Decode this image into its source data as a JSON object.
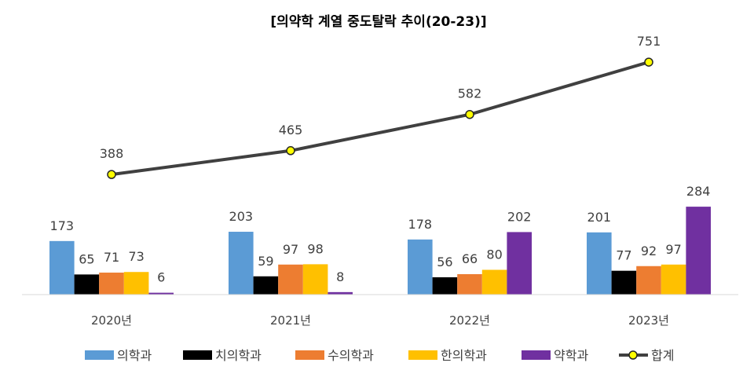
{
  "chart_data": {
    "type": "bar",
    "title": "[의약학 계열 중도탈락 추이(20-23)]",
    "categories": [
      "2020년",
      "2021년",
      "2022년",
      "2023년"
    ],
    "series": [
      {
        "name": "의학과",
        "type": "bar",
        "color": "#5B9BD5",
        "values": [
          173,
          203,
          178,
          201
        ]
      },
      {
        "name": "치의학과",
        "type": "bar",
        "color": "#000000",
        "values": [
          65,
          59,
          56,
          77
        ]
      },
      {
        "name": "수의학과",
        "type": "bar",
        "color": "#ED7D31",
        "values": [
          71,
          97,
          66,
          92
        ]
      },
      {
        "name": "한의학과",
        "type": "bar",
        "color": "#FFC000",
        "values": [
          73,
          98,
          80,
          97
        ]
      },
      {
        "name": "약학과",
        "type": "bar",
        "color": "#7030A0",
        "values": [
          6,
          8,
          202,
          284
        ]
      },
      {
        "name": "합계",
        "type": "line",
        "color": "#404040",
        "marker_color": "#FFFF00",
        "values": [
          388,
          465,
          582,
          751
        ]
      }
    ],
    "xlabel": "",
    "ylabel": "",
    "ylim": [
      0,
      800
    ],
    "grid": false,
    "legend": "bottom"
  }
}
